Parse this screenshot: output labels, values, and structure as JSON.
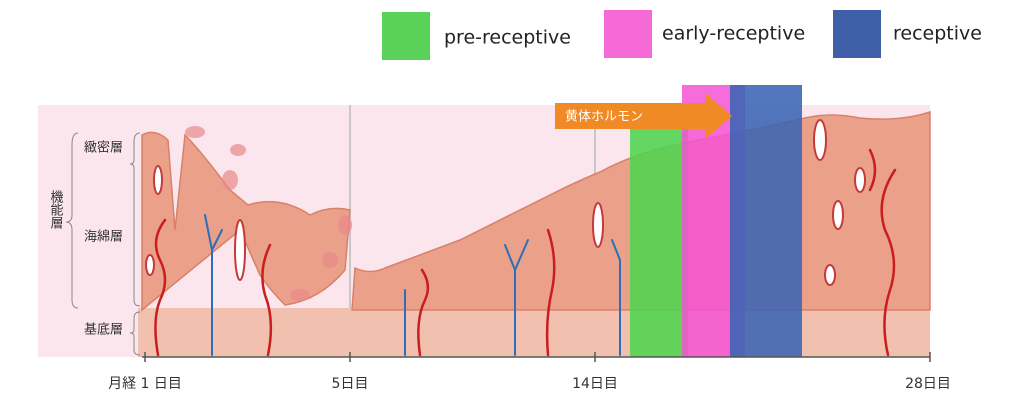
{
  "legend": [
    {
      "label": "pre-receptive"
    },
    {
      "label": "early-receptive"
    },
    {
      "label": "receptive"
    }
  ],
  "hormone_arrow": {
    "label": "黄体ホルモン"
  },
  "layers": {
    "functional": "機能層",
    "compact": "緻密層",
    "spongy": "海綿層",
    "basal": "基底層"
  },
  "timeline": [
    {
      "label": "月経 1 日目"
    },
    {
      "label": "5日目"
    },
    {
      "label": "14日目"
    },
    {
      "label": "28日目"
    }
  ]
}
